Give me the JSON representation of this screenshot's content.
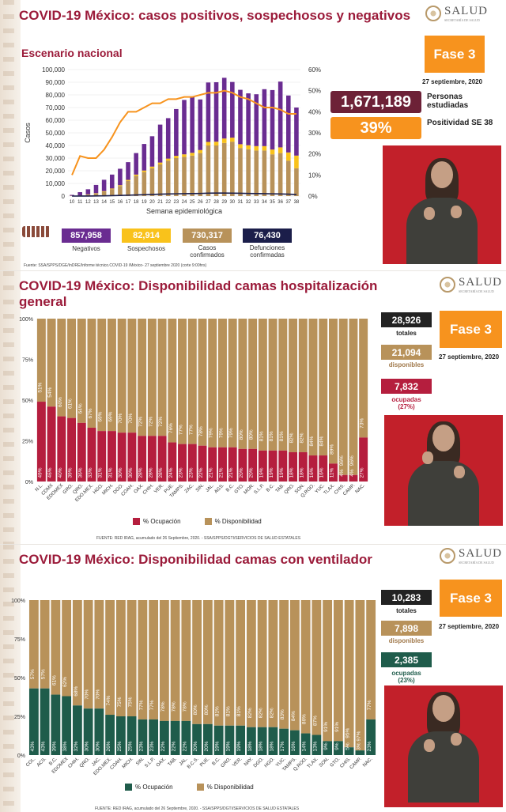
{
  "colors": {
    "maroon": "#9b1b3a",
    "orange": "#f7931e",
    "brown": "#b8925a",
    "purple": "#6a2c91",
    "yellow": "#f9c21b",
    "navy": "#1b1e4a",
    "green": "#1f5c4b",
    "red_bar": "#b51e3e",
    "dark_maroon": "#6d2137"
  },
  "panel1": {
    "title": "COVID-19 México: casos positivos, sospechosos y negativos",
    "subtitle": "Escenario nacional",
    "logo_text": "SALUD",
    "logo_small": "SECRETARÍA DE SALUD",
    "fase": "Fase 3",
    "date": "27 septiembre, 2020",
    "personas_value": "1,671,189",
    "personas_label": "Personas estudiadas",
    "positividad_value": "39%",
    "positividad_label": "Positividad SE 38",
    "chips": [
      {
        "value": "857,958",
        "label": "Negativos"
      },
      {
        "value": "82,914",
        "label": "Sospechosos"
      },
      {
        "value": "730,317",
        "label": "Casos confirmados"
      },
      {
        "value": "76,430",
        "label": "Defunciones confirmadas"
      }
    ],
    "footer": "Fuente: SSA/SPPS/DGE/InDRE/Informe técnico.COVID-19 /México- 27 septiembre 2020 (corte 9:00hrs)"
  },
  "panel2": {
    "title": "COVID-19 México: Disponibilidad camas hospitalización general",
    "logo_text": "SALUD",
    "logo_small": "SECRETARÍA DE SALUD",
    "fase": "Fase 3",
    "date": "27 septiembre, 2020",
    "totales_value": "28,926",
    "totales_label": "totales",
    "disp_value": "21,094",
    "disp_label": "disponibles",
    "ocup_value": "7,832",
    "ocup_label": "ocupadas",
    "ocup_pct": "(27%)",
    "legend_occ": "% Ocupación",
    "legend_disp": "% Disponibilidad",
    "footer": "FUENTE: RED IRAG, acumulado del 26 Septiembre, 2020. - SSA/SPPS/DGTI/SERVICIOS DE SALUD ESTATALES"
  },
  "panel3": {
    "title": "COVID-19 México: Disponibilidad camas con ventilador",
    "logo_text": "SALUD",
    "logo_small": "SECRETARÍA DE SALUD",
    "fase": "Fase 3",
    "date": "27 septiembre, 2020",
    "totales_value": "10,283",
    "totales_label": "totales",
    "disp_value": "7,898",
    "disp_label": "disponibles",
    "ocup_value": "2,385",
    "ocup_label": "ocupadas",
    "ocup_pct": "(23%)",
    "legend_occ": "% Ocupación",
    "legend_disp": "% Disponibilidad",
    "footer": "FUENTE: RED IRAG, acumulado del 26 Septiembre, 2020. - SSA/SPPS/DGTI/SERVICIOS DE SALUD ESTATALES"
  },
  "chart_data": [
    {
      "type": "bar",
      "stacked": true,
      "xlabel": "Semana epidemiológica",
      "ylabel": "Casos",
      "ylim": [
        0,
        100000
      ],
      "y2lim": [
        0,
        60
      ],
      "yticks": [
        "0",
        "10,000",
        "20,000",
        "30,000",
        "40,000",
        "50,000",
        "60,000",
        "70,000",
        "80,000",
        "90,000",
        "100,000"
      ],
      "y2ticks": [
        "0%",
        "10%",
        "20%",
        "30%",
        "40%",
        "50%",
        "60%"
      ],
      "categories": [
        "10",
        "11",
        "12",
        "13",
        "14",
        "15",
        "16",
        "17",
        "18",
        "19",
        "20",
        "21",
        "22",
        "23",
        "24",
        "25",
        "26",
        "27",
        "28",
        "29",
        "30",
        "31",
        "32",
        "33",
        "34",
        "35",
        "36",
        "37",
        "38"
      ],
      "series": [
        {
          "values": [
            200,
            500,
            1200,
            2000,
            3500,
            5500,
            8000,
            12000,
            16000,
            19000,
            22000,
            25000,
            28000,
            30000,
            31000,
            32000,
            34000,
            40000,
            40000,
            42000,
            43000,
            38000,
            37000,
            36000,
            36000,
            33000,
            34000,
            28000,
            22000
          ]
        },
        {
          "values": [
            50,
            100,
            200,
            300,
            400,
            500,
            600,
            800,
            1000,
            1200,
            1300,
            1500,
            1600,
            1800,
            2000,
            2200,
            2400,
            2800,
            3000,
            3500,
            3200,
            3000,
            3200,
            3500,
            3500,
            3800,
            4500,
            6500,
            10000
          ]
        },
        {
          "values": [
            700,
            2500,
            4000,
            6500,
            9000,
            11000,
            13000,
            14000,
            17000,
            21000,
            24000,
            30000,
            32000,
            37000,
            43000,
            44000,
            40000,
            47000,
            47000,
            48000,
            44000,
            43000,
            41000,
            41000,
            45000,
            47000,
            52000,
            45000,
            38000
          ]
        },
        {
          "values": [
            5,
            20,
            50,
            120,
            200,
            350,
            500,
            700,
            900,
            1100,
            1300,
            1500,
            1700,
            1800,
            1900,
            2000,
            2100,
            2300,
            2400,
            2400,
            2300,
            2200,
            2100,
            2000,
            1900,
            1800,
            1700,
            1500,
            1200
          ]
        },
        {
          "type": "line",
          "axis": "y2",
          "values": [
            10,
            19,
            18,
            18,
            22,
            28,
            35,
            40,
            40,
            42,
            44,
            44,
            46,
            46,
            47,
            47,
            48,
            49,
            49,
            50,
            49,
            47,
            46,
            44,
            42,
            42,
            41,
            39,
            39
          ]
        }
      ]
    },
    {
      "type": "bar",
      "stacked": true,
      "ylim": [
        0,
        100
      ],
      "yticks": [
        "0%",
        "25%",
        "50%",
        "75%",
        "100%"
      ],
      "categories": [
        "N.L.",
        "CDMX",
        "EDOMEX",
        "GRO.",
        "QRO.",
        "EDO.MEX.",
        "HGO.",
        "MICH.",
        "DGO.",
        "COAH.",
        "OAX.",
        "CHIH.",
        "VER.",
        "PUE.",
        "TAMPS.",
        "ZAC.",
        "SIN.",
        "JAL.",
        "AGS.",
        "B.C.",
        "GTO.",
        "MOR.",
        "S.L.P.",
        "B.C.",
        "TAB.",
        "QRO.",
        "SON.",
        "Q.ROO.",
        "YUC.",
        "TLAX.",
        "CHIS.",
        "CAMP.",
        "NAC."
      ],
      "series": [
        {
          "values": [
            49,
            46,
            40,
            39,
            36,
            33,
            31,
            31,
            30,
            30,
            28,
            28,
            28,
            24,
            23,
            23,
            22,
            21,
            21,
            21,
            20,
            20,
            19,
            19,
            19,
            18,
            18,
            16,
            16,
            11,
            4,
            4,
            27
          ]
        },
        {
          "values": [
            51,
            54,
            60,
            61,
            64,
            67,
            69,
            69,
            70,
            70,
            72,
            72,
            72,
            76,
            77,
            77,
            78,
            79,
            79,
            79,
            80,
            80,
            81,
            81,
            81,
            82,
            82,
            84,
            84,
            89,
            96,
            96,
            73
          ]
        }
      ]
    },
    {
      "type": "bar",
      "stacked": true,
      "ylim": [
        0,
        100
      ],
      "yticks": [
        "0%",
        "25%",
        "50%",
        "75%",
        "100%"
      ],
      "categories": [
        "COL.",
        "ACS.",
        "B.C.",
        "EDOMEX",
        "CHIH.",
        "QRO.",
        "JAC.",
        "EDO.MEX.",
        "COAH.",
        "MICH.",
        "SIN.",
        "S.L.P.",
        "OAX.",
        "TAB.",
        "JAL.",
        "B.C.S.",
        "PUE.",
        "B.C.",
        "GRO.",
        "VER.",
        "NAY.",
        "DGO.",
        "HGO.",
        "YUC.",
        "TAMPS.",
        "Q.ROO.",
        "TLAX.",
        "SON.",
        "GTO.",
        "CHIS.",
        "CAMP.",
        "NAC."
      ],
      "series": [
        {
          "values": [
            43,
            43,
            39,
            38,
            32,
            30,
            30,
            26,
            25,
            25,
            23,
            23,
            22,
            22,
            22,
            20,
            20,
            19,
            19,
            19,
            18,
            18,
            18,
            17,
            16,
            14,
            13,
            9,
            9,
            5,
            3,
            23
          ]
        },
        {
          "values": [
            57,
            57,
            61,
            62,
            68,
            70,
            70,
            74,
            75,
            75,
            77,
            77,
            78,
            78,
            78,
            80,
            80,
            81,
            81,
            81,
            82,
            82,
            82,
            83,
            84,
            86,
            87,
            91,
            91,
            95,
            97,
            77
          ]
        }
      ]
    }
  ]
}
